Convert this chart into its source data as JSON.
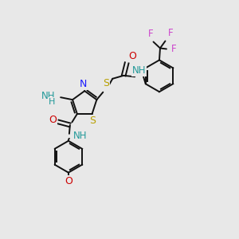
{
  "bg_color": "#e8e8e8",
  "bond_color": "#111111",
  "lw": 1.4,
  "dbo": 0.048,
  "N_color": "#1a1aff",
  "S_color": "#b8a000",
  "O_color": "#cc0000",
  "NH_color": "#229999",
  "F_color": "#cc44cc",
  "figsize": [
    3.0,
    3.0
  ],
  "dpi": 100,
  "xlim": [
    0.5,
    6.5
  ],
  "ylim": [
    0.3,
    6.3
  ]
}
